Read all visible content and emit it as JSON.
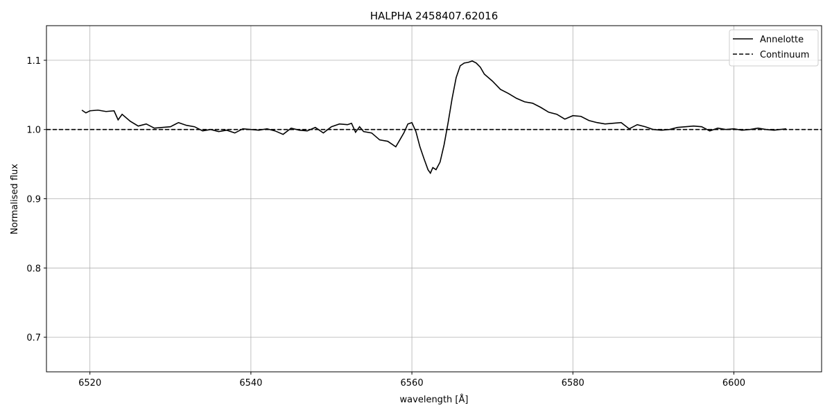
{
  "chart_data": {
    "type": "line",
    "title": "HALPHA 2458407.62016",
    "xlabel": "wavelength [Å]",
    "ylabel": "Normalised flux",
    "xlim": [
      6514.6,
      6610.9
    ],
    "ylim": [
      0.65,
      1.15
    ],
    "xticks": [
      6520,
      6540,
      6560,
      6580,
      6600
    ],
    "yticks": [
      0.7,
      0.8,
      0.9,
      {
        "value": 1,
        "label": "1.0"
      },
      1.1
    ],
    "grid": true,
    "legend": "upper right",
    "series": [
      {
        "name": "Annelotte",
        "color": "#000000",
        "dash": "solid",
        "x": [
          6519,
          6519.5,
          6520,
          6521,
          6522,
          6523,
          6523.5,
          6524,
          6525,
          6526,
          6527,
          6528,
          6529,
          6530,
          6531,
          6532,
          6533,
          6534,
          6535,
          6536,
          6537,
          6538,
          6539,
          6540,
          6541,
          6542,
          6543,
          6544,
          6545,
          6546,
          6547,
          6548,
          6549,
          6550,
          6551,
          6552,
          6552.5,
          6553,
          6553.5,
          6554,
          6555,
          6556,
          6557,
          6558,
          6558.5,
          6559,
          6559.5,
          6560,
          6560.5,
          6561,
          6561.5,
          6562,
          6562.3,
          6562.6,
          6563,
          6563.5,
          6564,
          6564.5,
          6565,
          6565.5,
          6566,
          6566.5,
          6567,
          6567.5,
          6568,
          6568.5,
          6569,
          6570,
          6571,
          6572,
          6573,
          6574,
          6575,
          6576,
          6577,
          6578,
          6579,
          6580,
          6581,
          6582,
          6583,
          6584,
          6585,
          6586,
          6587,
          6588,
          6589,
          6590,
          6591,
          6592,
          6593,
          6594,
          6595,
          6596,
          6597,
          6598,
          6599,
          6600,
          6601,
          6602,
          6603,
          6604,
          6605,
          6606.5
        ],
        "values": [
          1.028,
          1.024,
          1.027,
          1.028,
          1.026,
          1.027,
          1.014,
          1.022,
          1.012,
          1.005,
          1.008,
          1.002,
          1.003,
          1.004,
          1.01,
          1.006,
          1.004,
          0.998,
          1.0,
          0.997,
          0.999,
          0.995,
          1.001,
          1.0,
          0.999,
          1.001,
          0.998,
          0.993,
          1.002,
          0.999,
          0.998,
          1.003,
          0.995,
          1.004,
          1.008,
          1.007,
          1.009,
          0.996,
          1.004,
          0.997,
          0.995,
          0.985,
          0.983,
          0.975,
          0.985,
          0.995,
          1.008,
          1.01,
          0.997,
          0.975,
          0.958,
          0.942,
          0.937,
          0.945,
          0.942,
          0.953,
          0.978,
          1.01,
          1.045,
          1.075,
          1.092,
          1.096,
          1.097,
          1.099,
          1.096,
          1.09,
          1.08,
          1.07,
          1.058,
          1.052,
          1.045,
          1.04,
          1.038,
          1.032,
          1.025,
          1.022,
          1.015,
          1.02,
          1.019,
          1.013,
          1.01,
          1.008,
          1.009,
          1.01,
          1.001,
          1.007,
          1.004,
          1.0,
          0.999,
          1.0,
          1.003,
          1.004,
          1.005,
          1.004,
          0.998,
          1.002,
          1.0,
          1.001,
          0.999,
          1.0,
          1.002,
          1.0,
          0.999,
          1.001
        ]
      },
      {
        "name": "Continuum",
        "color": "#000000",
        "dash": "dashed",
        "x": [
          6514.6,
          6610.9
        ],
        "values": [
          1,
          1
        ]
      }
    ]
  }
}
